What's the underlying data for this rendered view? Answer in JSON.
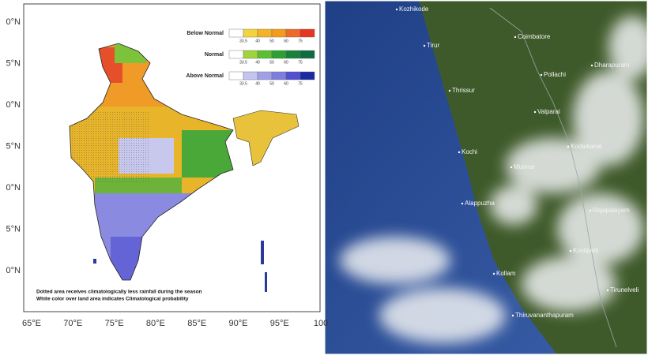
{
  "left_map": {
    "y_labels": [
      "0°N",
      "5°N",
      "0°N",
      "5°N",
      "0°N",
      "5°N",
      "0°N"
    ],
    "x_labels": [
      "65°E",
      "70°E",
      "75°E",
      "80°E",
      "85°E",
      "90°E",
      "95°E",
      "100"
    ],
    "legend": [
      {
        "title": "Below Normal",
        "ticks": [
          "33.5",
          "40",
          "50",
          "60",
          "75"
        ]
      },
      {
        "title": "Normal",
        "ticks": [
          "33.5",
          "40",
          "50",
          "60",
          "75"
        ]
      },
      {
        "title": "Above Normal",
        "ticks": [
          "33.5",
          "40",
          "50",
          "60",
          "75"
        ]
      }
    ],
    "notes": [
      "Dotted area receives climatologically less rainfall during the season",
      "White color over land area indicates Climatological probability"
    ]
  },
  "right_image": {
    "places": [
      "Kozhikode",
      "Tirur",
      "Coimbatore",
      "Pollachi",
      "Dharapuram",
      "Thrissur",
      "Valparai",
      "Kochi",
      "Kodaikanal",
      "Munnar",
      "Alappuzha",
      "Rajapalayam",
      "Kovilpatti",
      "Kollam",
      "Tirunelveli",
      "Thiruvananthapuram"
    ]
  }
}
